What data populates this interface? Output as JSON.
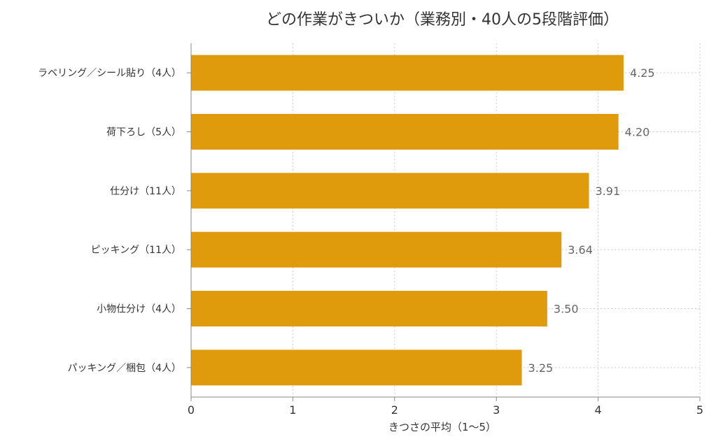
{
  "chart_data": {
    "type": "bar",
    "orientation": "horizontal",
    "title": "どの作業がきついか（業務別・40人の5段階評価）",
    "xlabel": "きつさの平均（1〜5）",
    "ylabel": "",
    "categories": [
      "ラベリング／シール貼り（4人）",
      "荷下ろし（5人）",
      "仕分け（11人）",
      "ピッキング（11人）",
      "小物仕分け（4人）",
      "パッキング／梱包（4人）"
    ],
    "values": [
      4.25,
      4.2,
      3.91,
      3.64,
      3.5,
      3.25
    ],
    "value_labels": [
      "4.25",
      "4.20",
      "3.91",
      "3.64",
      "3.50",
      "3.25"
    ],
    "xlim": [
      0,
      5
    ],
    "xticks": [
      "0",
      "1",
      "2",
      "3",
      "4",
      "5"
    ],
    "grid": true,
    "bar_color": "#e09b0c"
  }
}
